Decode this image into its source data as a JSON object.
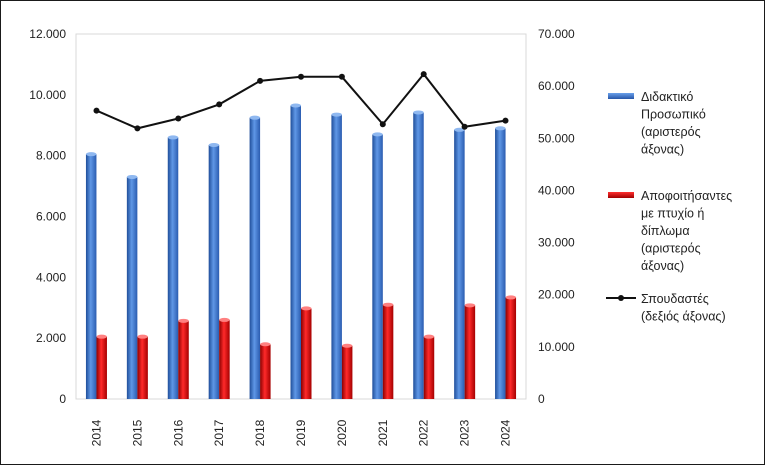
{
  "chart_data": {
    "type": "bar",
    "categories": [
      "2014",
      "2015",
      "2016",
      "2017",
      "2018",
      "2019",
      "2020",
      "2021",
      "2022",
      "2023",
      "2024"
    ],
    "series": [
      {
        "name": "Διδακτικό Προσωπικό (αριστερός άξονας)",
        "legend_lines": [
          "Διδακτικό",
          "Προσωπικό",
          "(αριστερός",
          "άξονας)"
        ],
        "type": "bar",
        "axis": "left",
        "color": "#3f74c4",
        "values": [
          8050,
          7300,
          8600,
          8350,
          9250,
          9650,
          9350,
          8700,
          9420,
          8850,
          8900
        ]
      },
      {
        "name": "Αποφοιτήσαντες με πτυχίο ή δίπλωμα (αριστερός άξονας)",
        "legend_lines": [
          "Αποφοιτήσαντες",
          "με πτυχίο ή",
          "δίπλωμα",
          "(αριστερός",
          "άξονας)"
        ],
        "type": "bar",
        "axis": "left",
        "color": "#d40000",
        "values": [
          2050,
          2050,
          2570,
          2600,
          1800,
          2980,
          1750,
          3100,
          2050,
          3080,
          3340
        ]
      },
      {
        "name": "Σπουδαστές (δεξιός άξονας)",
        "legend_lines": [
          "Σπουδαστές",
          "(δεξιός άξονας)"
        ],
        "type": "line",
        "axis": "right",
        "color": "#111111",
        "values": [
          55300,
          51900,
          53800,
          56500,
          61000,
          61800,
          61800,
          52700,
          62300,
          52200,
          53400
        ]
      }
    ],
    "left_axis": {
      "min": 0,
      "max": 12000,
      "step": 2000,
      "tick_labels": [
        "0",
        "2.000",
        "4.000",
        "6.000",
        "8.000",
        "10.000",
        "12.000"
      ]
    },
    "right_axis": {
      "min": 0,
      "max": 70000,
      "step": 10000,
      "tick_labels": [
        "0",
        "10.000",
        "20.000",
        "30.000",
        "40.000",
        "50.000",
        "60.000",
        "70.000"
      ]
    },
    "grid": false,
    "legend_position": "right",
    "x_tick_rotation": "vertical",
    "plot_background": "#ffffff"
  }
}
